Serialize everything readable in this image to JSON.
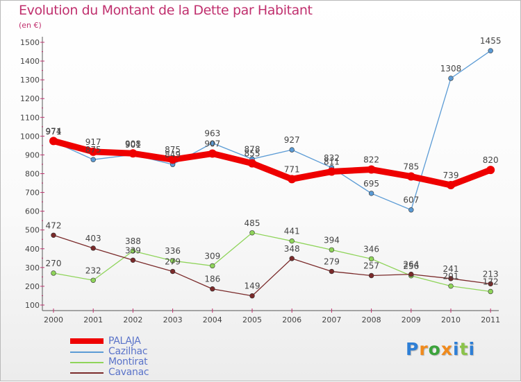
{
  "header": {
    "title": "Evolution du Montant de la Dette par Habitant",
    "subtitle": "(en €)"
  },
  "branding": {
    "text": "Proxiti",
    "letters": [
      "P",
      "r",
      "o",
      "x",
      "i",
      "t",
      "i"
    ],
    "colors": [
      "#2e7fd6",
      "#f08a1c",
      "#3ba33b",
      "#f08a1c",
      "#2e7fd6",
      "#8bc34a",
      "#2e7fd6"
    ]
  },
  "chart_data": {
    "type": "line",
    "title": "Evolution du Montant de la Dette par Habitant",
    "subtitle": "(en €)",
    "x": [
      "2000",
      "2001",
      "2002",
      "2003",
      "2004",
      "2005",
      "2006",
      "2007",
      "2008",
      "2009",
      "2010",
      "2011"
    ],
    "ylim": [
      100,
      1500
    ],
    "yticks": [
      100,
      200,
      300,
      400,
      500,
      600,
      700,
      800,
      900,
      1000,
      1100,
      1200,
      1300,
      1400,
      1500
    ],
    "grid": false,
    "legend_position": "bottom-left",
    "series": [
      {
        "name": "PALAJA",
        "color": "#ee0000",
        "line": "thick",
        "values": [
          974,
          917,
          908,
          875,
          907,
          855,
          771,
          811,
          822,
          785,
          739,
          820
        ],
        "labels": [
          "974",
          "917",
          "908",
          "875",
          "907",
          "855",
          "771",
          "811",
          "822",
          "785",
          "739",
          "820"
        ]
      },
      {
        "name": "Cazilhac",
        "color": "#5b9bd5",
        "line": "thin",
        "values": [
          971,
          875,
          901,
          849,
          963,
          878,
          927,
          832,
          695,
          607,
          1308,
          1455
        ],
        "labels": [
          "971",
          "875",
          "901",
          "849",
          "963",
          "878",
          "927",
          "832",
          "695",
          "607",
          "1308",
          "1455"
        ]
      },
      {
        "name": "Montirat",
        "color": "#8fd45a",
        "line": "thin",
        "values": [
          270,
          232,
          388,
          336,
          309,
          485,
          441,
          394,
          346,
          256,
          201,
          172
        ],
        "labels": [
          "270",
          "232",
          "388",
          "336",
          "309",
          "485",
          "441",
          "394",
          "346",
          "256",
          "201",
          "172"
        ]
      },
      {
        "name": "Cavanac",
        "color": "#7a2a2a",
        "line": "thin",
        "values": [
          472,
          403,
          339,
          279,
          186,
          149,
          348,
          279,
          257,
          264,
          241,
          213
        ],
        "labels": [
          "472",
          "403",
          "339",
          "279",
          "186",
          "149",
          "348",
          "279",
          "257",
          "264",
          "241",
          "213"
        ]
      }
    ]
  },
  "legend": {
    "items": [
      {
        "label": "PALAJA",
        "color": "#ee0000"
      },
      {
        "label": "Cazilhac",
        "color": "#5b9bd5"
      },
      {
        "label": "Montirat",
        "color": "#8fd45a"
      },
      {
        "label": "Cavanac",
        "color": "#7a2a2a"
      }
    ]
  }
}
